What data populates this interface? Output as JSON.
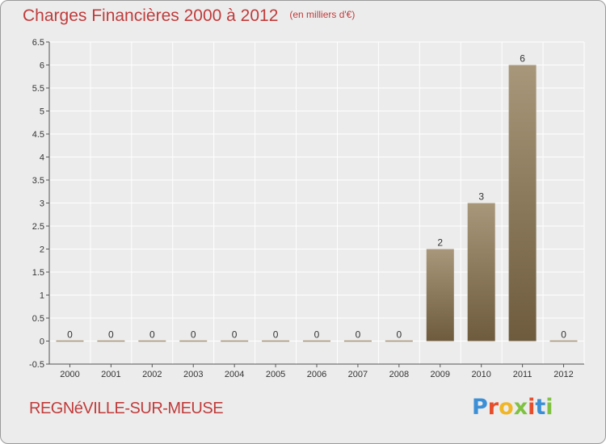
{
  "header": {
    "title": "Charges Financières 2000 à 2012",
    "unit": "(en milliers d'€)"
  },
  "footer": {
    "commune": "REGNéVILLE-SUR-MEUSE",
    "logo_letters": [
      "P",
      "r",
      "o",
      "x",
      "i",
      "t",
      "i"
    ],
    "logo_colors": [
      "#3a8fd6",
      "#e84d2a",
      "#f0b626",
      "#7fc241",
      "#e84d2a",
      "#3a8fd6",
      "#7fc241"
    ]
  },
  "colors": {
    "title": "#c13b3b",
    "bar_dark": "#6e5b3d",
    "bar_light": "#a8977a",
    "grid": "#ffffff",
    "axis": "#555555"
  },
  "chart_data": {
    "type": "bar",
    "categories": [
      "2000",
      "2001",
      "2002",
      "2003",
      "2004",
      "2005",
      "2006",
      "2007",
      "2008",
      "2009",
      "2010",
      "2011",
      "2012"
    ],
    "values": [
      0,
      0,
      0,
      0,
      0,
      0,
      0,
      0,
      0,
      2,
      3,
      6,
      0
    ],
    "data_labels": [
      "0",
      "0",
      "0",
      "0",
      "0",
      "0",
      "0",
      "0",
      "0",
      "2",
      "3",
      "6",
      "0"
    ],
    "ylim": [
      -0.5,
      6.5
    ],
    "yticks": [
      -0.5,
      0,
      0.5,
      1,
      1.5,
      2,
      2.5,
      3,
      3.5,
      4,
      4.5,
      5,
      5.5,
      6,
      6.5
    ],
    "ytick_labels": [
      "-0.5",
      "0",
      "0.5",
      "1",
      "1.5",
      "2",
      "2.5",
      "3",
      "3.5",
      "4",
      "4.5",
      "5",
      "5.5",
      "6",
      "6.5"
    ],
    "grid": true,
    "legend": "none"
  }
}
